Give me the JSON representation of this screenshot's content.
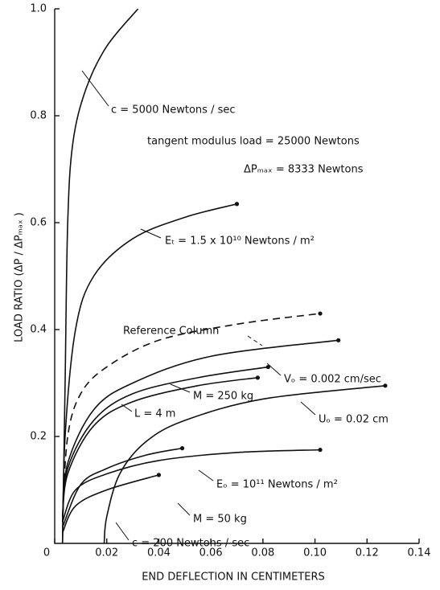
{
  "chart_data": {
    "type": "line",
    "x_label": "END DEFLECTION IN CENTIMETERS",
    "y_label": "LOAD RATIO (ΔP / ΔPₘₐₓ )",
    "xlim": [
      0,
      0.14
    ],
    "ylim": [
      0,
      1
    ],
    "xticks": [
      0,
      0.02,
      0.04,
      0.06,
      0.08,
      {
        "value": 0.1,
        "label": "0.10"
      },
      0.12,
      0.14
    ],
    "yticks": [
      0.2,
      0.4,
      0.6,
      0.8,
      {
        "value": 1,
        "label": "1.0"
      }
    ],
    "grid": false,
    "annotations": [
      "tangent modulus load = 25000 Newtons",
      "ΔPₘₐₓ = 8333 Newtons"
    ],
    "series": [
      {
        "name": "c = 5000 Newtons / sec",
        "color": "#111111",
        "marker": false,
        "x": [
          0.003,
          0.004,
          0.005,
          0.007,
          0.012,
          0.02,
          0.032
        ],
        "values": [
          0,
          0.3,
          0.6,
          0.75,
          0.85,
          0.93,
          1.0
        ]
      },
      {
        "name": "Eₜ = 1.5 x 10¹⁰ Newtons / m²",
        "color": "#111111",
        "marker": true,
        "x": [
          0.003,
          0.004,
          0.008,
          0.015,
          0.03,
          0.05,
          0.07
        ],
        "values": [
          0,
          0.2,
          0.4,
          0.5,
          0.57,
          0.61,
          0.635
        ]
      },
      {
        "name": "Reference Column",
        "color": "#111111",
        "marker": true,
        "dashed": true,
        "x": [
          0.003,
          0.005,
          0.01,
          0.02,
          0.04,
          0.07,
          0.102
        ],
        "values": [
          0.05,
          0.2,
          0.28,
          0.33,
          0.38,
          0.41,
          0.43
        ]
      },
      {
        "name": "Vₒ = 0.002 cm/sec",
        "color": "#111111",
        "marker": true,
        "x": [
          0.003,
          0.005,
          0.015,
          0.03,
          0.06,
          0.109
        ],
        "values": [
          0.05,
          0.15,
          0.25,
          0.3,
          0.35,
          0.38
        ]
      },
      {
        "name": "M = 250 kg",
        "color": "#111111",
        "marker": true,
        "x": [
          0.003,
          0.005,
          0.015,
          0.03,
          0.055,
          0.082
        ],
        "values": [
          0.04,
          0.14,
          0.23,
          0.28,
          0.31,
          0.33
        ]
      },
      {
        "name": "L = 4 m",
        "color": "#111111",
        "marker": true,
        "x": [
          0.003,
          0.005,
          0.015,
          0.03,
          0.055,
          0.078
        ],
        "values": [
          0.04,
          0.13,
          0.22,
          0.265,
          0.295,
          0.31
        ]
      },
      {
        "name": "Uₒ = 0.02 cm",
        "color": "#111111",
        "marker": true,
        "x": [
          0.019,
          0.02,
          0.025,
          0.035,
          0.05,
          0.08,
          0.127
        ],
        "values": [
          0,
          0.05,
          0.13,
          0.19,
          0.23,
          0.27,
          0.295
        ]
      },
      {
        "name": "Eₒ = 10¹¹ Newtons / m²",
        "color": "#111111",
        "marker": true,
        "x": [
          0.003,
          0.008,
          0.02,
          0.04,
          0.07,
          0.102
        ],
        "values": [
          0.04,
          0.1,
          0.13,
          0.155,
          0.17,
          0.175
        ]
      },
      {
        "name": "M = 50 kg",
        "color": "#111111",
        "marker": true,
        "x": [
          0.003,
          0.01,
          0.02,
          0.035,
          0.049
        ],
        "values": [
          0.03,
          0.11,
          0.14,
          0.165,
          0.178
        ]
      },
      {
        "name": "c = 200 Newtons / sec",
        "color": "#111111",
        "marker": true,
        "x": [
          0.003,
          0.008,
          0.02,
          0.04
        ],
        "values": [
          0.02,
          0.07,
          0.1,
          0.128
        ]
      }
    ]
  }
}
